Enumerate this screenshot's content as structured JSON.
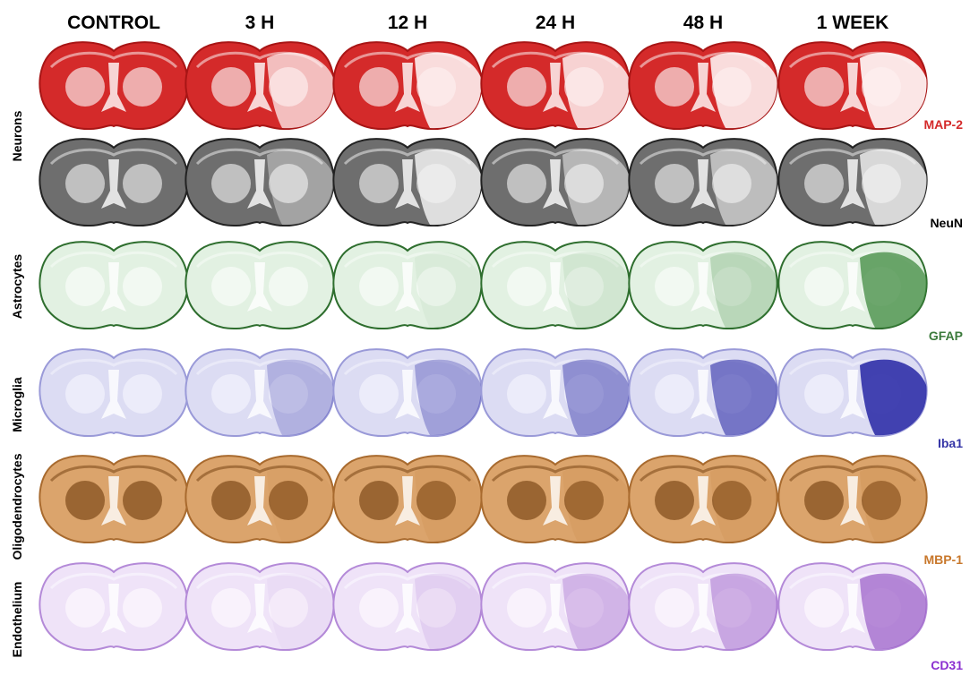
{
  "columns": [
    "CONTROL",
    "3 H",
    "12 H",
    "24 H",
    "48 H",
    "1 WEEK"
  ],
  "groups": [
    {
      "label": "Neurons",
      "stains": [
        "MAP-2",
        "NeuN"
      ]
    },
    {
      "label": "Astrocytes",
      "stains": [
        "GFAP"
      ]
    },
    {
      "label": "Microglia",
      "stains": [
        "Iba1"
      ]
    },
    {
      "label": "Oligodendrocytes",
      "stains": [
        "MBP-1"
      ]
    },
    {
      "label": "Endothelium",
      "stains": [
        "CD31"
      ]
    }
  ]
}
